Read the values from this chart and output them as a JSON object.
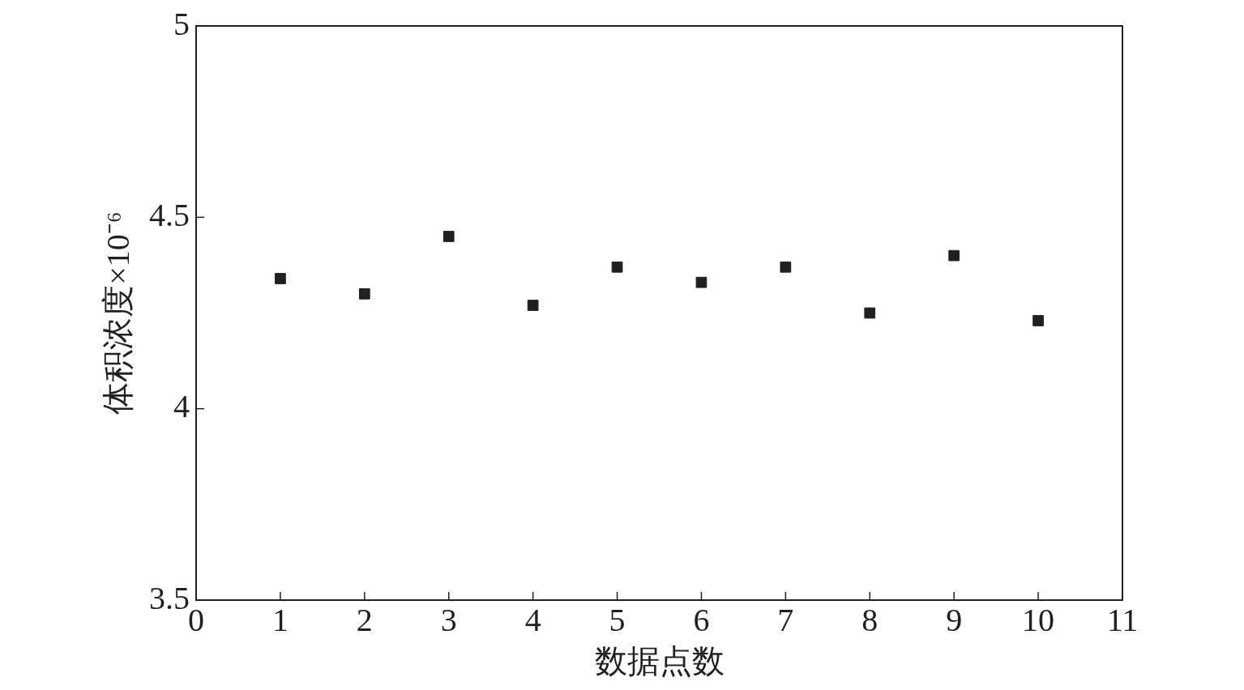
{
  "chart_data": {
    "type": "scatter",
    "xlabel": "数据点数",
    "ylabel": "体积浓度×10⁻⁶",
    "x": [
      1,
      2,
      3,
      4,
      5,
      6,
      7,
      8,
      9,
      10
    ],
    "series": [
      {
        "color": "#231f20",
        "values": [
          4.34,
          4.3,
          4.45,
          4.27,
          4.37,
          4.33,
          4.37,
          4.25,
          4.4,
          4.23
        ]
      }
    ],
    "marker": "square",
    "grid": false,
    "legend": false,
    "xlim": [
      0,
      11
    ],
    "xticks": [
      0,
      1,
      2,
      3,
      4,
      5,
      6,
      7,
      8,
      9,
      10,
      11
    ],
    "ylim": [
      3.5,
      5
    ],
    "yticks": [
      3.5,
      4,
      4.5,
      5
    ]
  }
}
